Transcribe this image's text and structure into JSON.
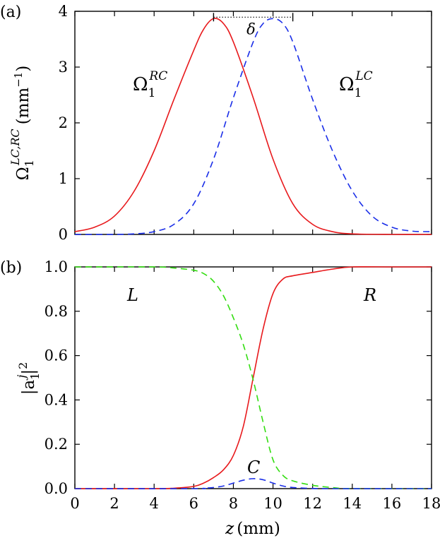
{
  "chart_data": [
    {
      "type": "line",
      "panel_label": "(a)",
      "xlabel": "",
      "ylabel_main": "Ω",
      "ylabel_sub": "1",
      "ylabel_sup": "LC,RC",
      "ylabel_unit": "(mm",
      "ylabel_unit_exp": "−1",
      "ylabel_unit_close": ")",
      "xlim": [
        0,
        18
      ],
      "ylim": [
        0,
        4
      ],
      "yticks": [
        0,
        1,
        2,
        3,
        4
      ],
      "xticks": [
        0,
        2,
        4,
        6,
        8,
        10,
        12,
        14,
        16,
        18
      ],
      "grid": false,
      "series": [
        {
          "label_main": "Ω",
          "label_sub": "1",
          "label_sup": "RC",
          "color": "#e8191c",
          "dash": "solid",
          "points": [
            [
              0,
              0.05
            ],
            [
              1,
              0.13
            ],
            [
              2,
              0.33
            ],
            [
              3,
              0.78
            ],
            [
              4,
              1.5
            ],
            [
              5,
              2.42
            ],
            [
              6,
              3.3
            ],
            [
              6.5,
              3.68
            ],
            [
              7,
              3.87
            ],
            [
              7.5,
              3.78
            ],
            [
              8,
              3.45
            ],
            [
              9,
              2.45
            ],
            [
              10,
              1.35
            ],
            [
              11,
              0.55
            ],
            [
              12,
              0.18
            ],
            [
              13,
              0.05
            ],
            [
              14,
              0.01
            ],
            [
              16,
              0.0
            ],
            [
              18,
              0.0
            ]
          ]
        },
        {
          "label_main": "Ω",
          "label_sub": "1",
          "label_sup": "LC",
          "color": "#1a2ee8",
          "dash": "dashed",
          "points": [
            [
              0,
              0.0
            ],
            [
              2,
              0.0
            ],
            [
              3,
              0.01
            ],
            [
              4,
              0.05
            ],
            [
              5,
              0.18
            ],
            [
              6,
              0.55
            ],
            [
              7,
              1.35
            ],
            [
              8,
              2.45
            ],
            [
              9,
              3.45
            ],
            [
              9.5,
              3.78
            ],
            [
              10,
              3.87
            ],
            [
              10.5,
              3.78
            ],
            [
              11,
              3.45
            ],
            [
              12,
              2.42
            ],
            [
              13,
              1.5
            ],
            [
              14,
              0.78
            ],
            [
              15,
              0.33
            ],
            [
              16,
              0.13
            ],
            [
              17,
              0.06
            ],
            [
              18,
              0.05
            ]
          ]
        }
      ],
      "annotation": {
        "text": "δ",
        "from_x": 7,
        "to_x": 11,
        "y": 3.87
      }
    },
    {
      "type": "line",
      "panel_label": "(b)",
      "xlabel": "z",
      "xlabel_unit": "(mm)",
      "ylabel_pre": "|a",
      "ylabel_sub": "1",
      "ylabel_sup": "j",
      "ylabel_post": "|",
      "ylabel_exp": "2",
      "xlim": [
        0,
        18
      ],
      "ylim": [
        0,
        1
      ],
      "yticks": [
        0.0,
        0.2,
        0.4,
        0.6,
        0.8,
        1.0
      ],
      "ytick_labels": [
        "0.0",
        "0.2",
        "0.4",
        "0.6",
        "0.8",
        "1.0"
      ],
      "xticks": [
        0,
        2,
        4,
        6,
        8,
        10,
        12,
        14,
        16,
        18
      ],
      "xtick_labels": [
        "0",
        "2",
        "4",
        "6",
        "8",
        "10",
        "12",
        "14",
        "16",
        "18"
      ],
      "grid": false,
      "series": [
        {
          "label": "R",
          "color": "#e8191c",
          "dash": "solid",
          "points": [
            [
              0,
              0
            ],
            [
              4,
              0
            ],
            [
              5,
              0.002
            ],
            [
              6,
              0.01
            ],
            [
              6.5,
              0.025
            ],
            [
              7,
              0.05
            ],
            [
              7.5,
              0.085
            ],
            [
              8,
              0.15
            ],
            [
              8.5,
              0.28
            ],
            [
              9,
              0.5
            ],
            [
              9.5,
              0.72
            ],
            [
              10,
              0.88
            ],
            [
              10.5,
              0.945
            ],
            [
              11,
              0.96
            ],
            [
              12,
              0.975
            ],
            [
              13,
              0.99
            ],
            [
              14,
              1.0
            ],
            [
              16,
              1.0
            ],
            [
              18,
              1.0
            ]
          ]
        },
        {
          "label": "L",
          "color": "#33dd11",
          "dash": "dashed",
          "points": [
            [
              0,
              1.0
            ],
            [
              4,
              1.0
            ],
            [
              5,
              0.995
            ],
            [
              6,
              0.985
            ],
            [
              6.5,
              0.97
            ],
            [
              7,
              0.935
            ],
            [
              7.5,
              0.87
            ],
            [
              8,
              0.77
            ],
            [
              8.5,
              0.65
            ],
            [
              9,
              0.49
            ],
            [
              9.5,
              0.3
            ],
            [
              10,
              0.13
            ],
            [
              10.5,
              0.06
            ],
            [
              11,
              0.035
            ],
            [
              12,
              0.015
            ],
            [
              13,
              0.005
            ],
            [
              14,
              0.0
            ],
            [
              18,
              0.0
            ]
          ]
        },
        {
          "label": "C",
          "color": "#1a2ee8",
          "dash": "dashed",
          "points": [
            [
              0,
              0
            ],
            [
              6,
              0
            ],
            [
              6.5,
              0.002
            ],
            [
              7,
              0.005
            ],
            [
              7.5,
              0.012
            ],
            [
              8,
              0.025
            ],
            [
              8.5,
              0.038
            ],
            [
              9,
              0.045
            ],
            [
              9.5,
              0.04
            ],
            [
              10,
              0.025
            ],
            [
              10.5,
              0.012
            ],
            [
              11,
              0.005
            ],
            [
              12,
              0.001
            ],
            [
              13,
              0.0
            ],
            [
              18,
              0.0
            ]
          ]
        }
      ]
    }
  ]
}
